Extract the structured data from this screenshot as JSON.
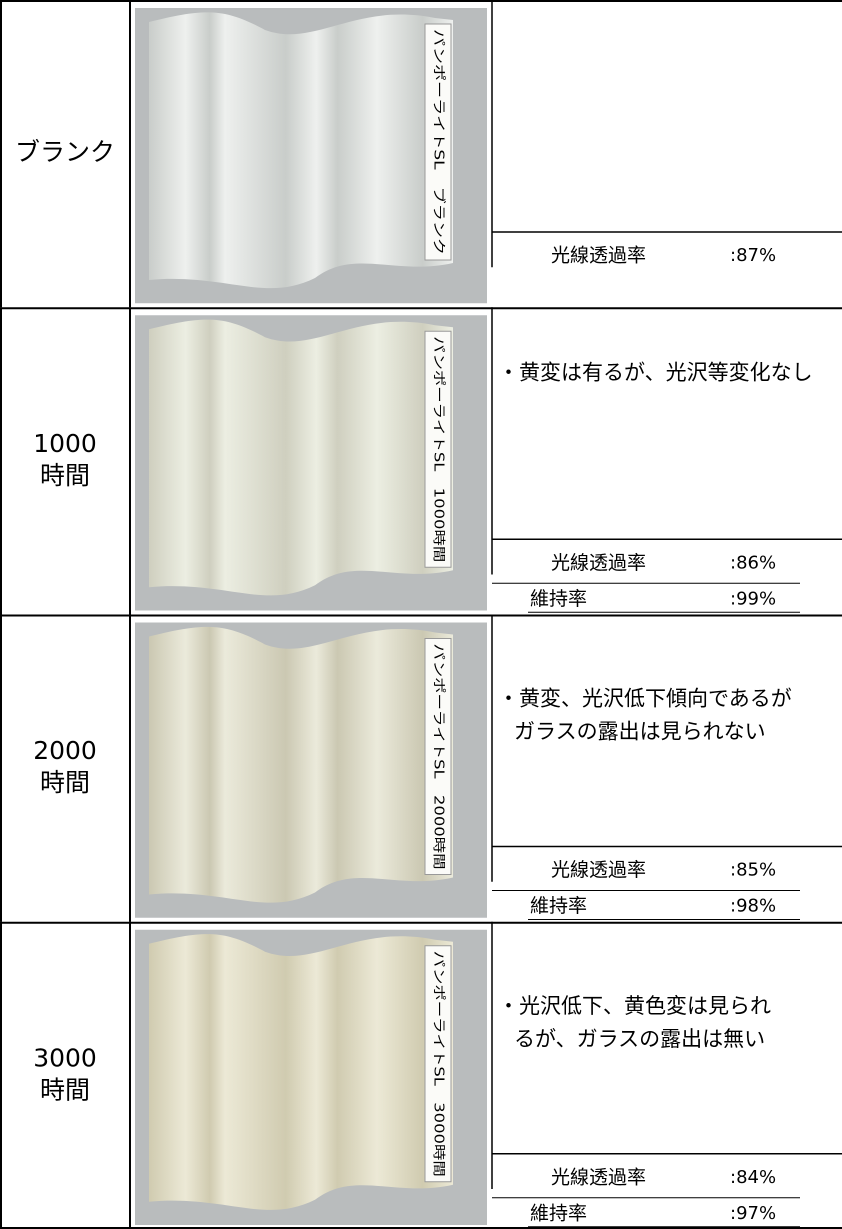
{
  "rows": [
    {
      "label_lines": [
        "ブランク"
      ],
      "photo_label": "パンポーライトSL　ブランク",
      "comment_lines": [],
      "transmittance": {
        "label": "光線透過率",
        "value": ":87%"
      }
    },
    {
      "label_lines": [
        "1000",
        "時間"
      ],
      "photo_label": "パンポーライトSL　1000時間",
      "comment_lines": [
        "・黄変は有るが、光沢等変化なし"
      ],
      "transmittance": {
        "label": "光線透過率",
        "value": ":86%"
      },
      "retention": {
        "label": "維持率",
        "value": ":99%"
      }
    },
    {
      "label_lines": [
        "2000",
        "時間"
      ],
      "photo_label": "パンポーライトSL　2000時間",
      "comment_lines": [
        "・黄変、光沢低下傾向であるが",
        "ガラスの露出は見られない"
      ],
      "transmittance": {
        "label": "光線透過率",
        "value": ":85%"
      },
      "retention": {
        "label": "維持率",
        "value": ":98%"
      }
    },
    {
      "label_lines": [
        "3000",
        "時間"
      ],
      "photo_label": "パンポーライトSL　3000時間",
      "comment_lines": [
        "・光沢低下、黄色変は見られ",
        "るが、ガラスの露出は無い"
      ],
      "transmittance": {
        "label": "光線透過率",
        "value": ":84%"
      },
      "retention": {
        "label": "維持率",
        "value": ":97%"
      }
    }
  ]
}
